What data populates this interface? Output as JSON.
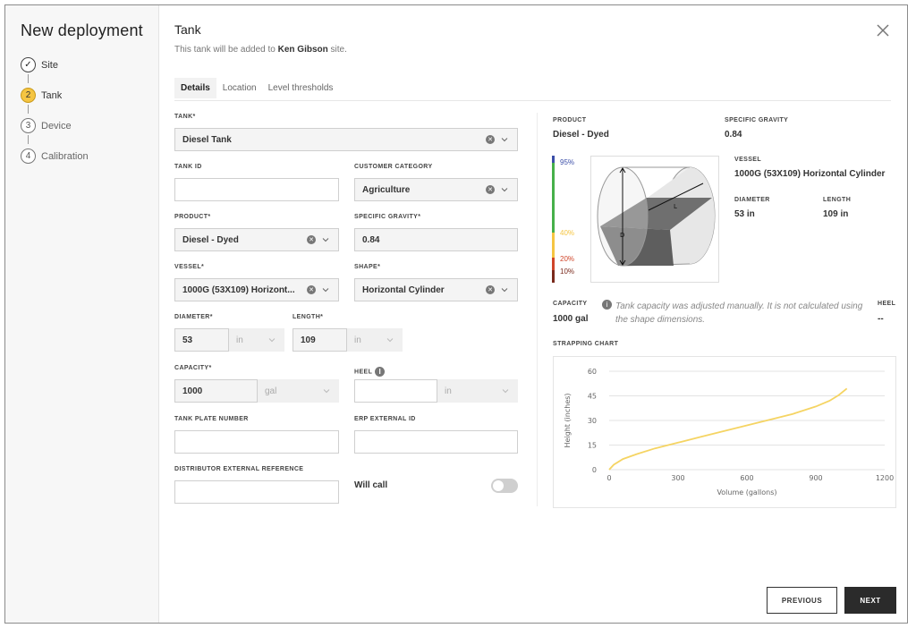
{
  "sidebar": {
    "title": "New deployment",
    "steps": [
      {
        "label": "Site",
        "marker": "✓"
      },
      {
        "label": "Tank",
        "marker": "2"
      },
      {
        "label": "Device",
        "marker": "3"
      },
      {
        "label": "Calibration",
        "marker": "4"
      }
    ]
  },
  "header": {
    "title": "Tank",
    "subtitle_prefix": "This tank will be added to ",
    "site_name": "Ken Gibson",
    "subtitle_suffix": " site."
  },
  "tabs": [
    "Details",
    "Location",
    "Level thresholds"
  ],
  "form": {
    "tank": {
      "label": "TANK*",
      "value": "Diesel Tank"
    },
    "tank_id": {
      "label": "TANK ID",
      "value": ""
    },
    "customer_category": {
      "label": "CUSTOMER CATEGORY",
      "value": "Agriculture"
    },
    "product": {
      "label": "PRODUCT*",
      "value": "Diesel - Dyed"
    },
    "specific_gravity": {
      "label": "SPECIFIC GRAVITY*",
      "value": "0.84"
    },
    "vessel": {
      "label": "VESSEL*",
      "value": "1000G (53X109) Horizont..."
    },
    "shape": {
      "label": "SHAPE*",
      "value": "Horizontal Cylinder"
    },
    "diameter": {
      "label": "DIAMETER*",
      "value": "53",
      "unit": "in"
    },
    "length": {
      "label": "LENGTH*",
      "value": "109",
      "unit": "in"
    },
    "capacity": {
      "label": "CAPACITY*",
      "value": "1000",
      "unit": "gal"
    },
    "heel": {
      "label": "HEEL",
      "value": "",
      "unit": "in"
    },
    "tank_plate_number": {
      "label": "TANK PLATE NUMBER",
      "value": ""
    },
    "erp_external_id": {
      "label": "ERP EXTERNAL ID",
      "value": ""
    },
    "distributor_external_reference": {
      "label": "DISTRIBUTOR EXTERNAL REFERENCE",
      "value": ""
    },
    "will_call": {
      "label": "Will call",
      "enabled": false
    }
  },
  "summary": {
    "product_label": "PRODUCT",
    "product_value": "Diesel - Dyed",
    "sg_label": "SPECIFIC GRAVITY",
    "sg_value": "0.84",
    "vessel_label": "VESSEL",
    "vessel_value": "1000G (53X109) Horizontal Cylinder",
    "diameter_label": "DIAMETER",
    "diameter_value": "53 in",
    "length_label": "LENGTH",
    "length_value": "109 in",
    "levels": [
      {
        "text": "95%",
        "color": "#3b4ea8"
      },
      {
        "text": "40%",
        "color": "#f5c542"
      },
      {
        "text": "20%",
        "color": "#d0452a"
      },
      {
        "text": "10%",
        "color": "#7a2a1c"
      }
    ],
    "dim_d": "D",
    "dim_l": "L",
    "capacity_label": "CAPACITY",
    "capacity_value": "1000 gal",
    "capacity_note": "Tank capacity was adjusted manually. It is not calculated using the shape dimensions.",
    "heel_label": "HEEL",
    "heel_value": "--",
    "strapping_label": "STRAPPING CHART"
  },
  "chart_data": {
    "type": "line",
    "title": "",
    "xlabel": "Volume (gallons)",
    "ylabel": "Height (inches)",
    "xlim": [
      0,
      1200
    ],
    "ylim": [
      0,
      60
    ],
    "xticks": [
      "0",
      "300",
      "600",
      "900",
      "1200"
    ],
    "yticks": [
      "0",
      "15",
      "30",
      "45",
      "60"
    ],
    "grid": true,
    "color": "#f5d463",
    "x": [
      0,
      20,
      60,
      120,
      200,
      300,
      400,
      500,
      600,
      700,
      800,
      900,
      960,
      1000,
      1035
    ],
    "y": [
      0,
      3,
      6.5,
      9.5,
      13,
      16.5,
      20,
      23.5,
      27,
      30.5,
      34,
      38.5,
      42,
      45.5,
      49.5
    ]
  },
  "buttons": {
    "previous": "PREVIOUS",
    "next": "NEXT"
  },
  "colors": {
    "accent": "#f5c542",
    "primary_button": "#2b2b2b"
  }
}
